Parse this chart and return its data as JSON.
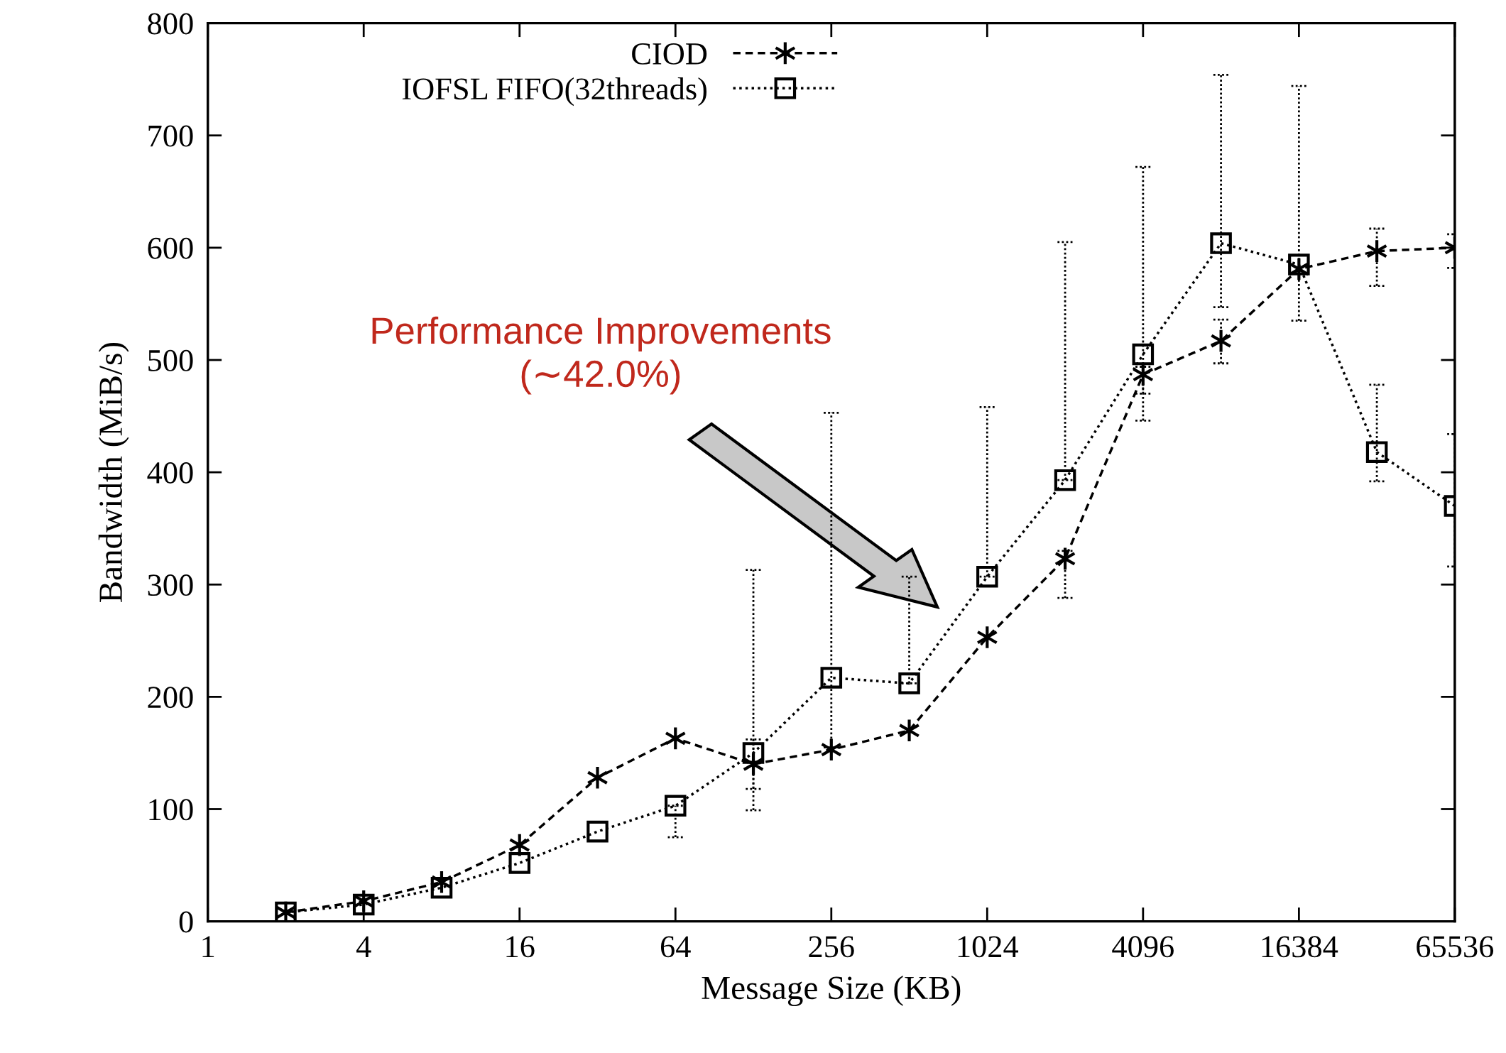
{
  "chart_data": {
    "type": "line",
    "xlabel": "Message Size (KB)",
    "ylabel": "Bandwidth (MiB/s)",
    "log": "x",
    "x": [
      2,
      4,
      8,
      16,
      32,
      64,
      128,
      256,
      512,
      1024,
      2048,
      4096,
      8192,
      16384,
      32768,
      65536
    ],
    "xlim": [
      1,
      65536
    ],
    "xticks": [
      1,
      4,
      16,
      64,
      256,
      1024,
      4096,
      16384,
      65536
    ],
    "ylim": [
      0,
      800
    ],
    "yticks": [
      0,
      100,
      200,
      300,
      400,
      500,
      600,
      700,
      800
    ],
    "grid": false,
    "legend": "top",
    "series": [
      {
        "name": "CIOD",
        "color": "#000000",
        "marker": "cross",
        "line_style": "dashed",
        "values": [
          8,
          18,
          35,
          68,
          128,
          163,
          140,
          153,
          170,
          253,
          323,
          487,
          517,
          581,
          597,
          600
        ],
        "errors": [
          null,
          null,
          null,
          null,
          null,
          null,
          [
            118,
            162
          ],
          null,
          null,
          null,
          [
            288,
            330
          ],
          [
            470,
            494
          ],
          [
            497,
            536
          ],
          null,
          [
            566,
            617
          ],
          [
            582,
            612
          ]
        ]
      },
      {
        "name": "IOFSL FIFO(32threads)",
        "color": "#000000",
        "marker": "square",
        "line_style": "dotted",
        "values": [
          8,
          15,
          30,
          52,
          80,
          103,
          150,
          217,
          212,
          307,
          393,
          505,
          604,
          585,
          418,
          370
        ],
        "errors": [
          null,
          null,
          null,
          null,
          null,
          [
            75,
            103
          ],
          [
            99,
            313
          ],
          [
            155,
            453
          ],
          [
            212,
            307
          ],
          [
            307,
            458
          ],
          [
            393,
            605
          ],
          [
            446,
            672
          ],
          [
            547,
            754
          ],
          [
            535,
            744
          ],
          [
            392,
            478
          ],
          [
            316,
            434
          ]
        ]
      }
    ],
    "annotations": [
      "Performance Improvements\n(∼42.0%)"
    ]
  }
}
